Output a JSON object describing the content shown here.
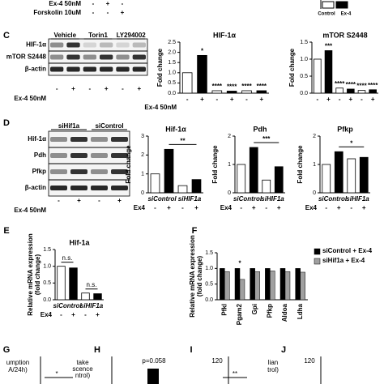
{
  "top": {
    "rows": [
      {
        "label": "Ex-4 50nM",
        "signs": [
          "-",
          "+",
          "-"
        ]
      },
      {
        "label": "Forskolin 10uM",
        "signs": [
          "-",
          "-",
          "+"
        ]
      }
    ],
    "legend_fragment": [
      "Control",
      "Ex-4"
    ]
  },
  "panel_letters": [
    "C",
    "D",
    "E",
    "F",
    "G",
    "H",
    "I",
    "J"
  ],
  "blots": [
    {
      "columns": [
        "Vehicle",
        "Torin1",
        "LY294002"
      ],
      "rows": [
        "HIF-1α",
        "mTOR S2448",
        "β-actin"
      ],
      "treatment_label": "Ex-4 50nM",
      "treatment": [
        "-",
        "+",
        "-",
        "+",
        "-",
        "+"
      ]
    },
    {
      "columns": [
        "siHif1a",
        "siControl"
      ],
      "rows": [
        "Hif-1α",
        "Pdh",
        "Pfkp",
        "β-actin"
      ],
      "treatment_label": "Ex-4 50nM",
      "treatment": [
        "-",
        "+",
        "-",
        "+"
      ]
    }
  ],
  "chart_data": [
    {
      "type": "bar",
      "title": "HIF-1α",
      "ylabel": [
        "Fold change"
      ],
      "ylim": [
        0,
        2.5
      ],
      "yticks": [
        {
          "value": 0,
          "label": "0.0"
        },
        {
          "value": 0.5,
          "label": "0.5"
        },
        {
          "value": 1,
          "label": "1.0"
        },
        {
          "value": 1.5,
          "label": "1.5"
        },
        {
          "value": 2,
          "label": "2.0"
        },
        {
          "value": 2.5,
          "label": "2.5"
        }
      ],
      "values": [
        1,
        1.85,
        0.12,
        0.1,
        0.12,
        0.12
      ],
      "colors": [
        "#ffffff",
        "#000000",
        "#ffffff",
        "#000000",
        "#ffffff",
        "#000000"
      ],
      "annotations": [
        null,
        "*",
        "****",
        "****",
        "****",
        "****"
      ],
      "xlabel": "Ex-4 50nM",
      "treatment": [
        "-",
        "+",
        "-",
        "+",
        "-",
        "+"
      ]
    },
    {
      "type": "bar",
      "title": "mTOR S2448",
      "ylabel": [
        "Fold change"
      ],
      "ylim": [
        0,
        1.5
      ],
      "yticks": [
        {
          "value": 0,
          "label": "0.0"
        },
        {
          "value": 0.5,
          "label": "0.5"
        },
        {
          "value": 1,
          "label": "1.0"
        },
        {
          "value": 1.5,
          "label": "1.5"
        }
      ],
      "values": [
        1,
        1.25,
        0.15,
        0.12,
        0.08,
        0.1
      ],
      "colors": [
        "#ffffff",
        "#000000",
        "#ffffff",
        "#000000",
        "#ffffff",
        "#000000"
      ],
      "annotations": [
        null,
        "***",
        "****",
        "****",
        "****",
        "****"
      ],
      "treatment": [
        "-",
        "+",
        "-",
        "+",
        "-",
        "+"
      ]
    },
    {
      "type": "bar",
      "title": "Hif-1α",
      "ylabel": [
        "Fold change"
      ],
      "ylim": [
        0,
        3
      ],
      "yticks": [
        0,
        1,
        2,
        3
      ],
      "values": [
        1,
        2.3,
        0.38,
        0.7
      ],
      "colors": [
        "#ffffff",
        "#000000",
        "#ffffff",
        "#000000"
      ],
      "groups": [
        "siControl",
        "siHIF1a"
      ],
      "xlabel": "Ex4",
      "treatment": [
        "-",
        "+",
        "-",
        "+"
      ],
      "bracket": "**"
    },
    {
      "type": "bar",
      "title": "Pdh",
      "ylabel": [
        "Fold change"
      ],
      "ylim": [
        0,
        2
      ],
      "yticks": [
        0,
        1,
        2
      ],
      "values": [
        1,
        1.6,
        0.45,
        0.92
      ],
      "colors": [
        "#ffffff",
        "#000000",
        "#ffffff",
        "#000000"
      ],
      "groups": [
        "siControl",
        "siHIF1a"
      ],
      "xlabel": "Ex4",
      "treatment": [
        "-",
        "+",
        "-",
        "+"
      ],
      "bracket": "***"
    },
    {
      "type": "bar",
      "title": "Pfkp",
      "ylabel": [
        "Fold change"
      ],
      "ylim": [
        0,
        2
      ],
      "yticks": [
        0,
        1,
        2
      ],
      "values": [
        1,
        1.45,
        1.2,
        1.25
      ],
      "colors": [
        "#ffffff",
        "#000000",
        "#ffffff",
        "#000000"
      ],
      "groups": [
        "siControl",
        "siHIF1a"
      ],
      "xlabel": "Ex4",
      "treatment": [
        "-",
        "+",
        "-",
        "+"
      ],
      "bracket": "*"
    },
    {
      "type": "bar",
      "title": "Hif-1a",
      "ylabel": [
        "Relative mRNA expression",
        "(fold change)"
      ],
      "ylim": [
        0,
        1.5
      ],
      "yticks": [
        {
          "value": 0,
          "label": "0.0"
        },
        {
          "value": 0.5,
          "label": "0.5"
        },
        {
          "value": 1,
          "label": "1.0"
        },
        {
          "value": 1.5,
          "label": "1.5"
        }
      ],
      "values": [
        1,
        0.95,
        0.2,
        0.18
      ],
      "colors": [
        "#ffffff",
        "#000000",
        "#ffffff",
        "#000000"
      ],
      "groups": [
        "siControl",
        "siHIF1a"
      ],
      "xlabel": "Ex4",
      "treatment": [
        "-",
        "+",
        "-",
        "+"
      ],
      "pair_annotations": [
        "n.s.",
        "n.s."
      ]
    },
    {
      "type": "grouped_bar",
      "ylabel": [
        "Relative mRNA expression",
        "(fold change)"
      ],
      "ylim": [
        0,
        1.5
      ],
      "yticks": [
        {
          "value": 0,
          "label": "0.0"
        },
        {
          "value": 0.5,
          "label": "0.5"
        },
        {
          "value": 1,
          "label": "1.0"
        },
        {
          "value": 1.5,
          "label": "1.5"
        }
      ],
      "categories": [
        "Pfkl",
        "Pgam2",
        "Gpi",
        "Pfkp",
        "Aldoa",
        "Ldha"
      ],
      "series": [
        {
          "name": "siControl + Ex-4",
          "color": "#000000",
          "values": [
            1,
            1,
            1,
            1,
            1,
            1
          ]
        },
        {
          "name": "siHif1a + Ex-4",
          "color": "#a0a0a0",
          "values": [
            0.9,
            0.65,
            0.9,
            0.92,
            0.9,
            0.88
          ]
        }
      ],
      "annotations": [
        null,
        "*",
        null,
        null,
        null,
        null
      ],
      "legend": "top-right"
    }
  ],
  "fragments": [
    [
      "umption",
      "A/24h)",
      "*"
    ],
    [
      "take",
      "scence",
      "ntrol)",
      "p=0.058"
    ],
    [
      "120",
      "**"
    ],
    [
      "lian",
      "trol)",
      "120"
    ]
  ]
}
